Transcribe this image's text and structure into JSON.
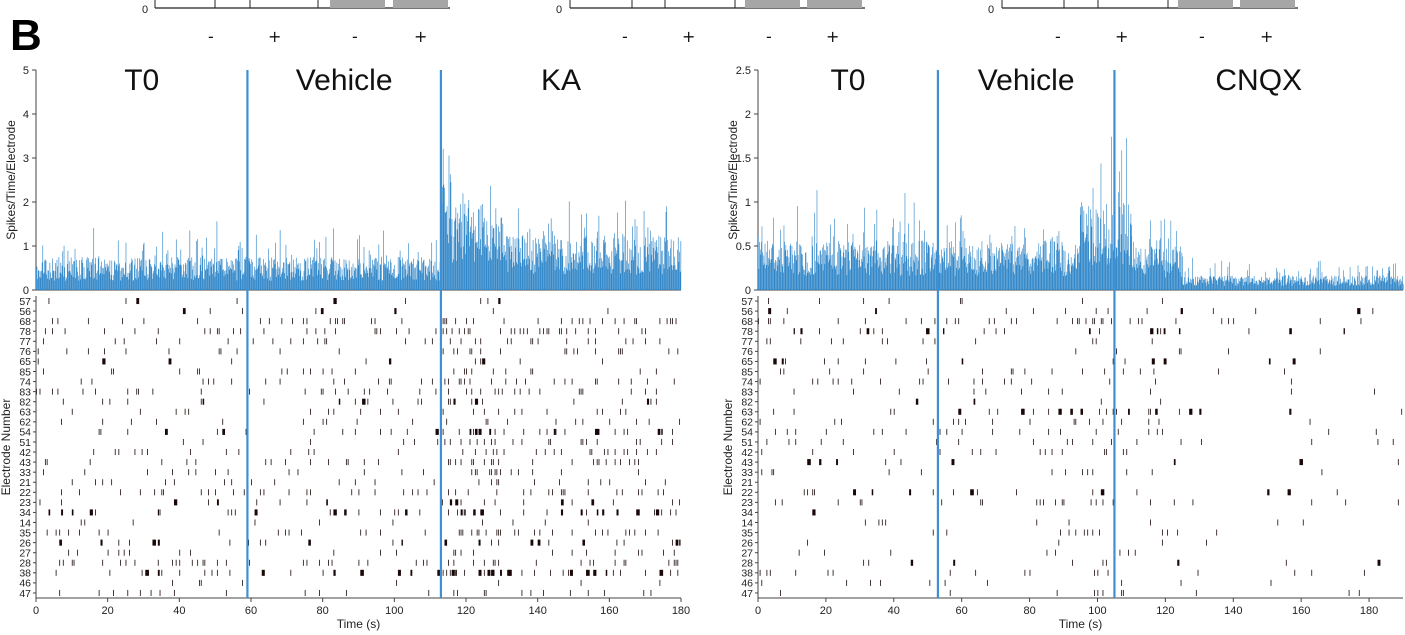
{
  "panel_label": "B",
  "top_strip": {
    "zero_label": "0",
    "signs": [
      "-",
      "+",
      "-",
      "+"
    ]
  },
  "colors": {
    "histogram": "#2f86c8",
    "marker": "#3d8fd6",
    "spike": "#1a0808",
    "axis": "#444444"
  },
  "chart_data": [
    {
      "type": "bar",
      "panel": "left-histogram",
      "ylabel": "Spikes/Time/Electrode",
      "xlim": [
        0,
        180
      ],
      "ylim": [
        0,
        5
      ],
      "yticks": [
        0,
        1,
        2,
        3,
        4,
        5
      ],
      "phases": [
        {
          "label": "T0",
          "start": 0,
          "end": 59
        },
        {
          "label": "Vehicle",
          "start": 59,
          "end": 113
        },
        {
          "label": "KA",
          "start": 113,
          "end": 180
        }
      ],
      "markers": [
        59,
        113
      ],
      "segments": [
        {
          "start": 0,
          "end": 113,
          "mean": 0.6,
          "spread": 0.9
        },
        {
          "start": 113,
          "end": 116,
          "mean": 2.3,
          "spread": 1.6
        },
        {
          "start": 116,
          "end": 130,
          "mean": 1.6,
          "spread": 1.4
        },
        {
          "start": 130,
          "end": 180,
          "mean": 1.0,
          "spread": 1.0
        }
      ]
    },
    {
      "type": "scatter",
      "panel": "left-raster",
      "xlabel": "Time (s)",
      "ylabel": "Electrode Number",
      "xlim": [
        0,
        180
      ],
      "xticks": [
        0,
        20,
        40,
        60,
        80,
        100,
        120,
        140,
        160,
        180
      ],
      "electrodes": [
        "57",
        "56",
        "68",
        "78",
        "77",
        "76",
        "65",
        "85",
        "74",
        "83",
        "82",
        "63",
        "62",
        "54",
        "51",
        "42",
        "43",
        "33",
        "21",
        "22",
        "23",
        "34",
        "14",
        "35",
        "26",
        "27",
        "28",
        "38",
        "46",
        "47"
      ],
      "markers": [
        59,
        113
      ]
    },
    {
      "type": "bar",
      "panel": "right-histogram",
      "ylabel": "Spikes/Time/Electrode",
      "xlim": [
        0,
        190
      ],
      "ylim": [
        0,
        2.5
      ],
      "yticks": [
        0,
        0.5,
        1,
        1.5,
        2,
        2.5
      ],
      "phases": [
        {
          "label": "T0",
          "start": 0,
          "end": 53
        },
        {
          "label": "Vehicle",
          "start": 53,
          "end": 105
        },
        {
          "label": "CNQX",
          "start": 105,
          "end": 190
        }
      ],
      "markers": [
        53,
        105
      ],
      "segments": [
        {
          "start": 0,
          "end": 95,
          "mean": 0.45,
          "spread": 0.55
        },
        {
          "start": 95,
          "end": 110,
          "mean": 0.8,
          "spread": 0.9
        },
        {
          "start": 110,
          "end": 125,
          "mean": 0.4,
          "spread": 0.5
        },
        {
          "start": 125,
          "end": 190,
          "mean": 0.13,
          "spread": 0.22
        }
      ]
    },
    {
      "type": "scatter",
      "panel": "right-raster",
      "xlabel": "Time (s)",
      "ylabel": "Electrode Number",
      "xlim": [
        0,
        190
      ],
      "xticks": [
        0,
        20,
        40,
        60,
        80,
        100,
        120,
        140,
        160,
        180
      ],
      "electrodes": [
        "57",
        "56",
        "68",
        "78",
        "77",
        "76",
        "65",
        "85",
        "74",
        "83",
        "82",
        "63",
        "62",
        "54",
        "51",
        "42",
        "43",
        "33",
        "21",
        "22",
        "23",
        "34",
        "14",
        "35",
        "26",
        "27",
        "28",
        "38",
        "46",
        "47"
      ],
      "markers": [
        53,
        105
      ]
    }
  ]
}
